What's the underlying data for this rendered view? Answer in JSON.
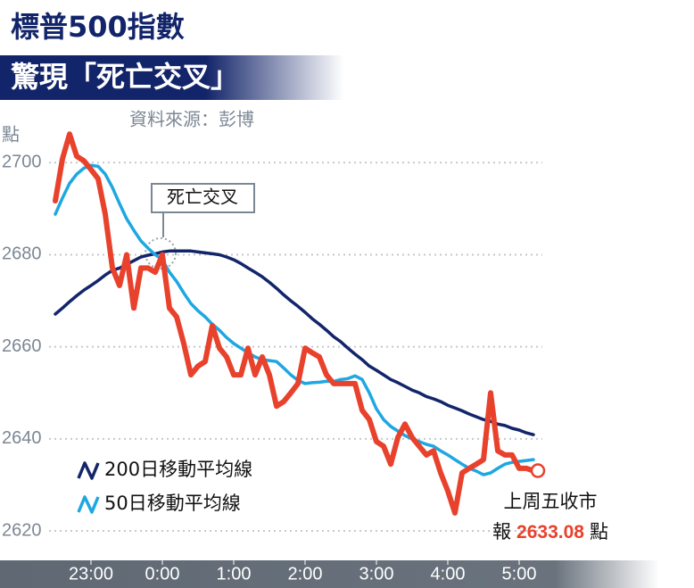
{
  "chart_data": {
    "type": "line",
    "title": "標普500指數",
    "subtitle": "驚現「死亡交叉」",
    "source": "資料來源：彭博",
    "y_label": "點",
    "annotations": {
      "cross": "死亡交叉",
      "close_note": "上周五收市",
      "close_prefix": "報",
      "close_suffix": "點"
    },
    "x": [
      22.5,
      22.6,
      22.7,
      22.8,
      22.9,
      23.0,
      23.1,
      23.2,
      23.3,
      23.4,
      23.5,
      23.6,
      23.7,
      23.8,
      23.9,
      24.0,
      24.1,
      24.2,
      24.3,
      24.4,
      24.5,
      24.6,
      24.7,
      24.8,
      24.9,
      25.0,
      25.1,
      25.2,
      25.3,
      25.4,
      25.5,
      25.6,
      25.7,
      25.8,
      25.9,
      26.0,
      26.1,
      26.2,
      26.3,
      26.4,
      26.5,
      26.6,
      26.7,
      26.8,
      26.9,
      27.0,
      27.1,
      27.2,
      27.3,
      27.4,
      27.5,
      27.6,
      27.7,
      27.8,
      27.9,
      28.0,
      28.1,
      28.2,
      28.3,
      28.4,
      28.5,
      28.6,
      28.7,
      28.8,
      28.9,
      29.0,
      29.1,
      29.2
    ],
    "series": [
      {
        "color": "#e8412c",
        "values": [
          2691.7,
          2700.8,
          2706.2,
          2701.4,
          2700.4,
          2698.5,
          2696.5,
          2688.8,
          2677.1,
          2673.3,
          2680.0,
          2668.4,
          2677.1,
          2677.1,
          2676.2,
          2680.0,
          2668.4,
          2666.5,
          2660.7,
          2653.9,
          2655.8,
          2656.8,
          2664.6,
          2659.7,
          2657.8,
          2653.9,
          2653.9,
          2659.7,
          2653.9,
          2657.8,
          2653.9,
          2647.1,
          2648.1,
          2650.0,
          2652.0,
          2659.7,
          2658.7,
          2657.8,
          2653.9,
          2652.0,
          2652.0,
          2652.0,
          2652.0,
          2646.2,
          2644.2,
          2639.4,
          2638.4,
          2634.5,
          2640.3,
          2643.2,
          2640.3,
          2638.4,
          2636.5,
          2637.4,
          2632.6,
          2628.7,
          2623.9,
          2632.6,
          2633.6,
          2634.5,
          2635.5,
          2650.0,
          2637.4,
          2636.5,
          2636.5,
          2633.6,
          2633.6,
          2633.08
        ]
      },
      {
        "name": "200日移動平均線",
        "color": "#13256a",
        "values": [
          2667.1,
          2668.4,
          2669.8,
          2671.1,
          2672.3,
          2673.3,
          2674.4,
          2675.6,
          2676.6,
          2677.1,
          2677.9,
          2678.7,
          2679.5,
          2679.9,
          2680.2,
          2680.6,
          2680.8,
          2680.8,
          2680.8,
          2680.8,
          2680.6,
          2680.4,
          2680.2,
          2680.0,
          2679.5,
          2678.9,
          2678.1,
          2677.1,
          2676.2,
          2675.2,
          2674.0,
          2672.7,
          2671.3,
          2670.0,
          2668.8,
          2667.5,
          2666.1,
          2664.9,
          2663.6,
          2662.2,
          2661.1,
          2659.7,
          2658.4,
          2657.2,
          2655.8,
          2654.9,
          2653.9,
          2652.9,
          2652.2,
          2651.4,
          2650.6,
          2650.0,
          2649.2,
          2648.7,
          2648.1,
          2647.3,
          2646.7,
          2646.1,
          2645.4,
          2644.8,
          2644.2,
          2643.8,
          2643.2,
          2642.9,
          2642.3,
          2641.9,
          2641.3,
          2640.9
        ]
      },
      {
        "name": "50日移動平均線",
        "color": "#1ea7e1",
        "values": [
          2688.8,
          2692.3,
          2695.5,
          2697.5,
          2698.8,
          2699.4,
          2699.2,
          2697.5,
          2694.6,
          2691.1,
          2687.8,
          2685.3,
          2683.0,
          2681.4,
          2680.0,
          2678.9,
          2676.2,
          2674.2,
          2671.7,
          2669.4,
          2667.8,
          2666.5,
          2664.9,
          2663.6,
          2662.0,
          2660.7,
          2659.7,
          2658.7,
          2657.8,
          2657.2,
          2657.0,
          2656.8,
          2655.4,
          2653.9,
          2652.7,
          2652.0,
          2652.2,
          2652.3,
          2652.5,
          2652.5,
          2652.9,
          2653.1,
          2653.7,
          2652.9,
          2650.0,
          2646.5,
          2644.2,
          2642.7,
          2641.7,
          2640.7,
          2640.0,
          2639.4,
          2638.8,
          2638.4,
          2637.4,
          2636.5,
          2635.5,
          2634.5,
          2633.6,
          2633.0,
          2632.2,
          2632.6,
          2633.6,
          2634.5,
          2634.9,
          2635.1,
          2635.3,
          2635.5
        ]
      }
    ],
    "xlim": [
      22.5,
      29.2
    ],
    "xticks": [
      {
        "value": 23,
        "label": "23:00"
      },
      {
        "value": 24,
        "label": "0:00"
      },
      {
        "value": 25,
        "label": "1:00"
      },
      {
        "value": 26,
        "label": "2:00"
      },
      {
        "value": 27,
        "label": "3:00"
      },
      {
        "value": 28,
        "label": "4:00"
      },
      {
        "value": 29,
        "label": "5:00"
      }
    ],
    "ylim": [
      2614,
      2708
    ],
    "yticks": [
      2620,
      2640,
      2660,
      2680,
      2700
    ],
    "grid": true
  }
}
